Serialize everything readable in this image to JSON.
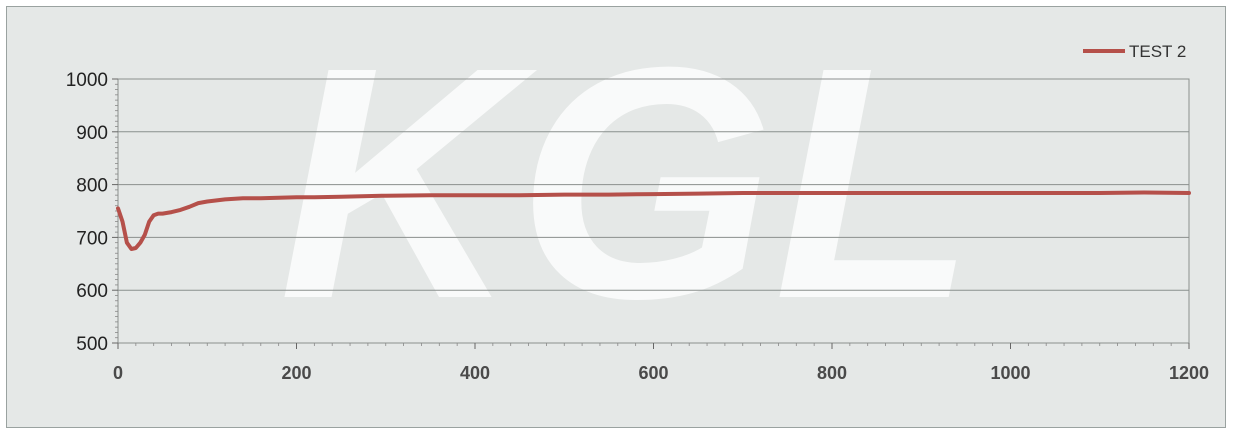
{
  "watermark": "KGL",
  "chart_data": {
    "type": "line",
    "title": "",
    "xlabel": "",
    "ylabel": "",
    "xlim": [
      0,
      1200
    ],
    "ylim": [
      500,
      1000
    ],
    "x_ticks": [
      0,
      200,
      400,
      600,
      800,
      1000,
      1200
    ],
    "y_ticks": [
      500,
      600,
      700,
      800,
      900,
      1000
    ],
    "grid": "horizontal",
    "legend_position": "top-right",
    "series": [
      {
        "name": "TEST 2",
        "color": "#b5504a",
        "x": [
          0,
          5,
          10,
          15,
          20,
          25,
          30,
          35,
          40,
          45,
          50,
          60,
          70,
          80,
          90,
          100,
          120,
          140,
          160,
          180,
          200,
          220,
          250,
          300,
          350,
          400,
          450,
          500,
          550,
          600,
          650,
          700,
          750,
          800,
          850,
          900,
          950,
          1000,
          1050,
          1100,
          1150,
          1200
        ],
        "y": [
          755,
          730,
          690,
          678,
          680,
          690,
          705,
          730,
          742,
          745,
          745,
          748,
          752,
          758,
          765,
          768,
          772,
          774,
          774,
          775,
          776,
          776,
          777,
          779,
          780,
          780,
          780,
          781,
          781,
          782,
          783,
          784,
          784,
          784,
          784,
          784,
          784,
          784,
          784,
          784,
          785,
          784
        ]
      }
    ]
  }
}
